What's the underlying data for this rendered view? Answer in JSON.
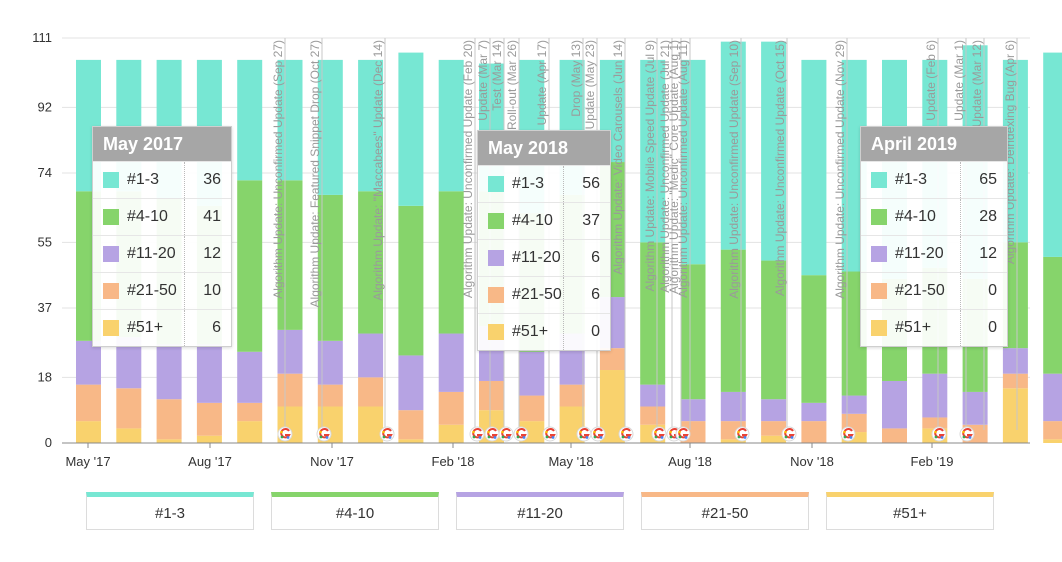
{
  "chart_data": {
    "type": "bar",
    "stacked": true,
    "yticks": [
      0,
      18,
      37,
      55,
      74,
      92,
      111
    ],
    "ylim": [
      0,
      111
    ],
    "xtick_labels": [
      "May '17",
      "Aug '17",
      "Nov '17",
      "Feb '18",
      "May '18",
      "Aug '18",
      "Nov '18",
      "Feb '19"
    ],
    "series": [
      {
        "name": "#1-3",
        "color": "#77e7d3",
        "values": [
          36,
          36,
          38,
          40,
          33,
          33,
          37,
          36,
          42,
          36,
          35,
          42,
          37,
          28,
          50,
          56,
          57,
          60,
          59,
          58,
          60,
          57,
          64,
          50,
          56,
          61,
          56,
          60,
          61,
          62,
          62,
          64,
          65
        ]
      },
      {
        "name": "#4-10",
        "color": "#86d46b",
        "values": [
          41,
          40,
          40,
          38,
          47,
          41,
          40,
          39,
          41,
          39,
          37,
          38,
          38,
          37,
          39,
          37,
          39,
          38,
          35,
          34,
          28,
          29,
          31,
          29,
          32,
          31,
          32,
          29,
          32,
          30,
          29,
          28,
          28
        ]
      },
      {
        "name": "#11-20",
        "color": "#b6a3e3",
        "values": [
          12,
          14,
          15,
          16,
          14,
          12,
          12,
          12,
          15,
          16,
          15,
          12,
          14,
          14,
          6,
          6,
          8,
          6,
          5,
          5,
          13,
          12,
          9,
          7,
          13,
          12,
          10,
          11,
          11,
          12,
          11,
          10,
          12
        ]
      },
      {
        "name": "#21-50",
        "color": "#f8b887",
        "values": [
          10,
          11,
          11,
          9,
          5,
          9,
          6,
          8,
          8,
          9,
          8,
          7,
          6,
          6,
          5,
          6,
          5,
          4,
          6,
          5,
          4,
          3,
          5,
          4,
          5,
          2,
          1,
          2,
          0,
          1,
          2,
          1,
          0
        ]
      },
      {
        "name": "#51+",
        "color": "#f9d26d",
        "values": [
          6,
          4,
          1,
          2,
          6,
          10,
          10,
          10,
          1,
          5,
          9,
          6,
          10,
          20,
          5,
          0,
          1,
          2,
          0,
          3,
          0,
          4,
          0,
          15,
          1,
          0,
          6,
          3,
          1,
          0,
          1,
          2,
          0
        ]
      }
    ],
    "update_labels": [
      "Algorithm Update: Unconfirmed Update (Sep 27)",
      "Algorithm Update: Featured Snippet Drop (Oct 27)",
      "Algorithm Update: \"Maccabees\" Update (Dec 14)",
      "Algorithm Update: Unconfirmed Update (Feb 20)",
      "Update (Mar 7)",
      "Test (Mar 14)",
      "Roll-out (Mar 26)",
      "Update (Apr 17)",
      "Drop (May 13)",
      "Update (May 23)",
      "Algorithm Update: Video Carousels (Jun 14)",
      "Algorithm Update: Mobile Speed Update (Jul 9)",
      "Algorithm Update: Unconfirmed Update (Jul 21)",
      "Algorithm Update: \"Medic\" Core Update (Aug 1)",
      "Algorithm Update: Unconfirmed Update (Aug 11)",
      "Algorithm Update: Unconfirmed Update (Sep 10)",
      "Algorithm Update: Unconfirmed Update (Oct 15)",
      "Algorithm Update: Unconfirmed Update (Nov 29)",
      "Update (Feb 6)",
      "Update (Mar 1)",
      "Update (Mar 12)",
      "Algorithm Update: Deindexing Bug (Apr 6)"
    ],
    "google_marker_count": 19
  },
  "tooltips": [
    {
      "title": "May 2017",
      "rows": [
        {
          "name": "#1-3",
          "value": "36"
        },
        {
          "name": "#4-10",
          "value": "41"
        },
        {
          "name": "#11-20",
          "value": "12"
        },
        {
          "name": "#21-50",
          "value": "10"
        },
        {
          "name": "#51+",
          "value": "6"
        }
      ]
    },
    {
      "title": "May 2018",
      "rows": [
        {
          "name": "#1-3",
          "value": "56"
        },
        {
          "name": "#4-10",
          "value": "37"
        },
        {
          "name": "#11-20",
          "value": "6"
        },
        {
          "name": "#21-50",
          "value": "6"
        },
        {
          "name": "#51+",
          "value": "0"
        }
      ]
    },
    {
      "title": "April 2019",
      "rows": [
        {
          "name": "#1-3",
          "value": "65"
        },
        {
          "name": "#4-10",
          "value": "28"
        },
        {
          "name": "#11-20",
          "value": "12"
        },
        {
          "name": "#21-50",
          "value": "0"
        },
        {
          "name": "#51+",
          "value": "0"
        }
      ]
    }
  ],
  "legend": [
    {
      "label": "#1-3",
      "color": "#77e7d3"
    },
    {
      "label": "#4-10",
      "color": "#86d46b"
    },
    {
      "label": "#11-20",
      "color": "#b6a3e3"
    },
    {
      "label": "#21-50",
      "color": "#f8b887"
    },
    {
      "label": "#51+",
      "color": "#f9d26d"
    }
  ]
}
